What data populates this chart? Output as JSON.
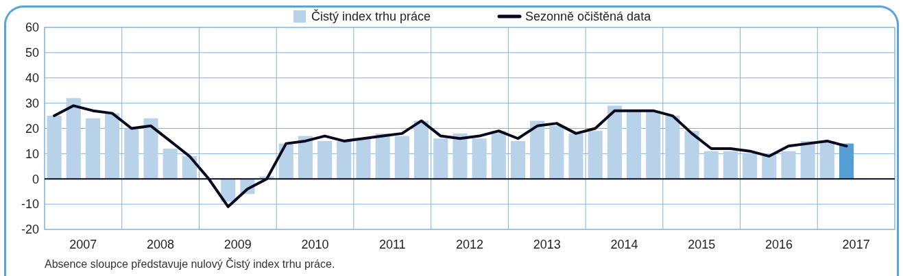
{
  "chart_data": {
    "type": "bar",
    "xlim": [
      2007,
      2018
    ],
    "xticks": [
      {
        "value": 2007,
        "label": null
      },
      {
        "value": 2007.5,
        "label": "2007"
      },
      {
        "value": 2008,
        "label": null
      },
      {
        "value": 2008.5,
        "label": "2008"
      },
      {
        "value": 2009,
        "label": null
      },
      {
        "value": 2009.5,
        "label": "2009"
      },
      {
        "value": 2010,
        "label": null
      },
      {
        "value": 2010.5,
        "label": "2010"
      },
      {
        "value": 2011,
        "label": null
      },
      {
        "value": 2011.5,
        "label": "2011"
      },
      {
        "value": 2012,
        "label": null
      },
      {
        "value": 2012.5,
        "label": "2012"
      },
      {
        "value": 2013,
        "label": null
      },
      {
        "value": 2013.5,
        "label": "2013"
      },
      {
        "value": 2014,
        "label": null
      },
      {
        "value": 2014.5,
        "label": "2014"
      },
      {
        "value": 2015,
        "label": null
      },
      {
        "value": 2015.5,
        "label": "2015"
      },
      {
        "value": 2016,
        "label": null
      },
      {
        "value": 2016.5,
        "label": "2016"
      },
      {
        "value": 2017,
        "label": null
      },
      {
        "value": 2017.5,
        "label": "2017"
      },
      {
        "value": 2018,
        "label": null
      }
    ],
    "x": [
      2007.125,
      2007.375,
      2007.625,
      2007.875,
      2008.125,
      2008.375,
      2008.625,
      2008.875,
      2009.125,
      2009.375,
      2009.625,
      2009.875,
      2010.125,
      2010.375,
      2010.625,
      2010.875,
      2011.125,
      2011.375,
      2011.625,
      2011.875,
      2012.125,
      2012.375,
      2012.625,
      2012.875,
      2013.125,
      2013.375,
      2013.625,
      2013.875,
      2014.125,
      2014.375,
      2014.625,
      2014.875,
      2015.125,
      2015.375,
      2015.625,
      2015.875,
      2016.125,
      2016.375,
      2016.625,
      2016.875,
      2017.125,
      2017.375
    ],
    "ylim": [
      -20,
      60
    ],
    "yticks": [
      -20,
      -10,
      0,
      10,
      20,
      30,
      40,
      50,
      60
    ],
    "grid": true,
    "legend": "top",
    "series": [
      {
        "name": "Čistý index trhu práce",
        "color": "#b8d2ea",
        "colors": [
          "#b8d2ea",
          "#b8d2ea",
          "#b8d2ea",
          "#b8d2ea",
          "#b8d2ea",
          "#b8d2ea",
          "#b8d2ea",
          "#b8d2ea",
          "#b8d2ea",
          "#b8d2ea",
          "#b8d2ea",
          "#b8d2ea",
          "#b8d2ea",
          "#b8d2ea",
          "#b8d2ea",
          "#b8d2ea",
          "#b8d2ea",
          "#b8d2ea",
          "#b8d2ea",
          "#b8d2ea",
          "#b8d2ea",
          "#b8d2ea",
          "#b8d2ea",
          "#b8d2ea",
          "#b8d2ea",
          "#b8d2ea",
          "#b8d2ea",
          "#b8d2ea",
          "#b8d2ea",
          "#b8d2ea",
          "#b8d2ea",
          "#b8d2ea",
          "#b8d2ea",
          "#b8d2ea",
          "#b8d2ea",
          "#b8d2ea",
          "#b8d2ea",
          "#b8d2ea",
          "#b8d2ea",
          "#b8d2ea",
          "#b8d2ea",
          "#559fd3"
        ],
        "values": [
          25,
          32,
          24,
          26,
          20,
          24,
          12,
          9,
          0,
          -9,
          -6,
          1,
          14,
          17,
          15,
          15,
          16,
          18,
          17,
          23,
          16,
          18,
          16,
          19,
          15,
          23,
          21,
          18,
          19,
          29,
          27,
          27,
          25,
          19,
          11,
          11,
          10,
          10,
          11,
          15,
          15,
          14
        ]
      },
      {
        "name": "Sezonně očištěná data",
        "type": "line",
        "color": "#0a0a1e",
        "values": [
          25,
          29,
          27,
          26,
          20,
          21,
          15,
          9,
          0,
          -11,
          -4,
          0,
          14,
          15,
          17,
          15,
          16,
          17,
          18,
          23,
          17,
          16,
          17,
          19,
          16,
          21,
          22,
          18,
          20,
          27,
          27,
          27,
          25,
          18,
          12,
          12,
          11,
          9,
          13,
          14,
          15,
          13
        ]
      }
    ],
    "annotations": [
      "Absence sloupce představuje nulový Čistý index trhu práce."
    ]
  }
}
